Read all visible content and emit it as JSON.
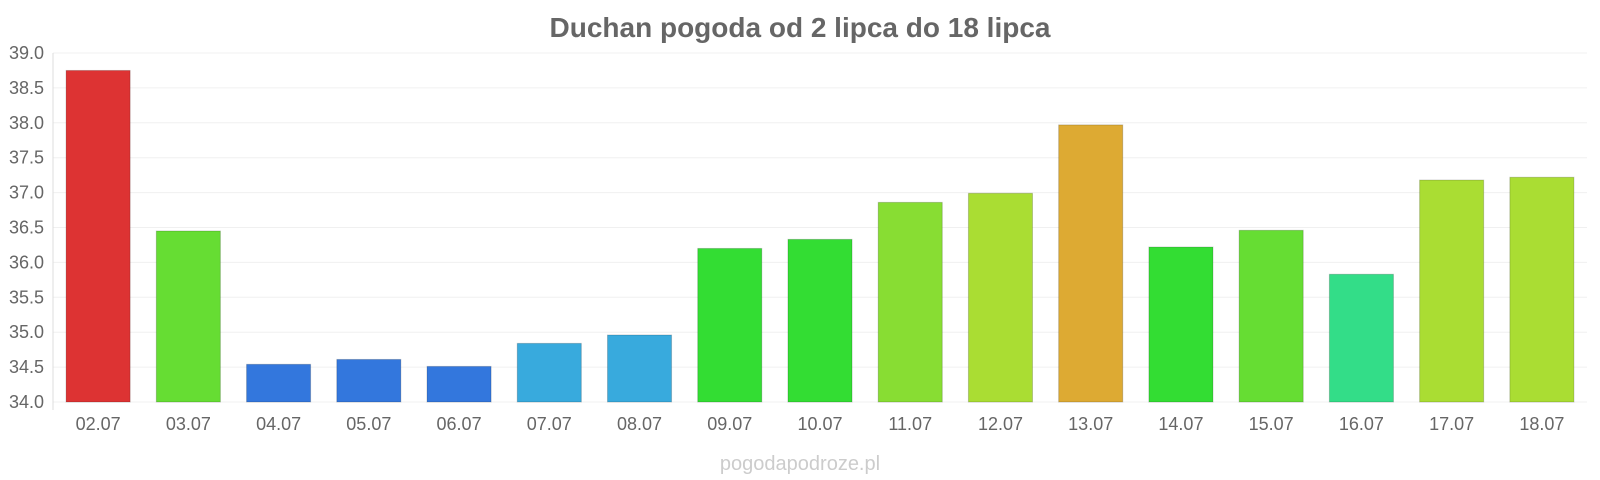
{
  "chart_data": {
    "type": "bar",
    "title": "Duchan pogoda od 2 lipca do 18 lipca",
    "categories": [
      "02.07",
      "03.07",
      "04.07",
      "05.07",
      "06.07",
      "07.07",
      "08.07",
      "09.07",
      "10.07",
      "11.07",
      "12.07",
      "13.07",
      "14.07",
      "15.07",
      "16.07",
      "17.07",
      "18.07"
    ],
    "values": [
      38.75,
      36.45,
      34.54,
      34.61,
      34.51,
      34.84,
      34.96,
      36.2,
      36.33,
      36.86,
      36.99,
      37.97,
      36.22,
      36.46,
      35.83,
      37.18,
      37.22
    ],
    "colors": [
      "#dd3333",
      "#66dd33",
      "#3377dd",
      "#3377dd",
      "#3377dd",
      "#38aadd",
      "#38aadd",
      "#33dd33",
      "#33dd33",
      "#88dd33",
      "#aadd33",
      "#ddaa33",
      "#33dd33",
      "#66dd33",
      "#33dd88",
      "#aadd33",
      "#aadd33"
    ],
    "yticks": [
      "34.0",
      "34.5",
      "35.0",
      "35.5",
      "36.0",
      "36.5",
      "37.0",
      "37.5",
      "38.0",
      "38.5",
      "39.0"
    ],
    "ylim": [
      34.0,
      39.0
    ],
    "xlabel": "",
    "ylabel": "",
    "grid": true,
    "legend": "none"
  },
  "watermark": "pogodapodroze.pl"
}
